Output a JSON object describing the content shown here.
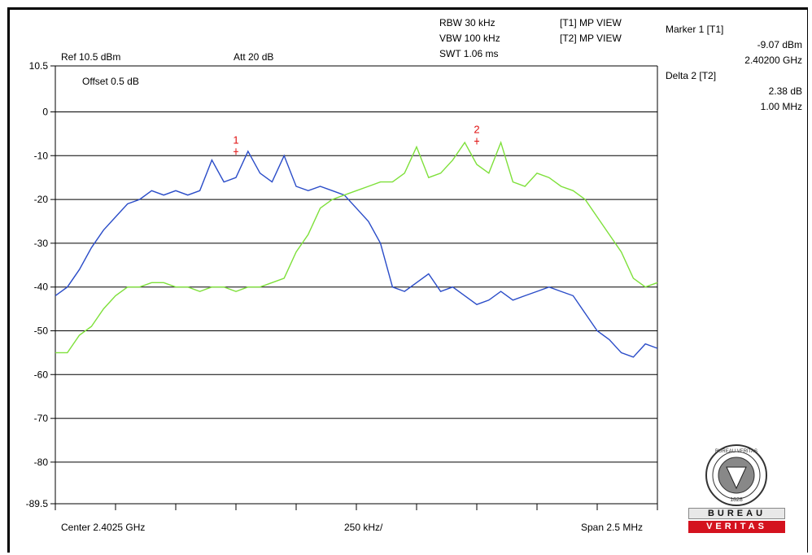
{
  "settings": {
    "ref": "Ref 10.5 dBm",
    "att": "Att  20 dB",
    "offset": "Offset 0.5 dB",
    "rbw": "RBW 30 kHz",
    "vbw": "VBW 100 kHz",
    "swt": "SWT 1.06 ms",
    "trace1": "[T1] MP VIEW",
    "trace2": "[T2] MP VIEW"
  },
  "marker_info": {
    "marker1_label": "Marker 1 [T1]",
    "marker1_level": "-9.07 dBm",
    "marker1_freq": "2.40200 GHz",
    "delta2_label": "Delta 2 [T2]",
    "delta2_level": "2.38 dB",
    "delta2_freq": "1.00 MHz"
  },
  "footer": {
    "center": "Center 2.4025 GHz",
    "div": "250 kHz/",
    "span": "Span 2.5 MHz"
  },
  "logo": {
    "top_text": "BUREAU",
    "bottom_text": "VERITAS",
    "seal_year": "1828",
    "seal_text": "BUREAU VERITAS"
  },
  "colors": {
    "trace1": "#2a4cc8",
    "trace2": "#7ee03a",
    "marker": "#e01010",
    "logo_red": "#d4121e"
  },
  "chart_data": {
    "type": "line",
    "title": "",
    "xlabel": "",
    "ylabel": "",
    "x_range_mhz": [
      -1.25,
      1.25
    ],
    "ylim": [
      -89.5,
      10.5
    ],
    "y_ticks": [
      10.5,
      0,
      -10,
      -20,
      -30,
      -40,
      -50,
      -60,
      -70,
      -80,
      -89.5
    ],
    "y_tick_labels": [
      "10.5",
      "0",
      "-10",
      "-20",
      "-30",
      "-40",
      "-50",
      "-60",
      "-70",
      "-80",
      "-89.5"
    ],
    "grid": true,
    "series": [
      {
        "name": "[T1] MP VIEW",
        "x": [
          -1.25,
          -1.2,
          -1.15,
          -1.1,
          -1.05,
          -1,
          -0.95,
          -0.9,
          -0.85,
          -0.8,
          -0.75,
          -0.7,
          -0.65,
          -0.6,
          -0.55,
          -0.5,
          -0.45,
          -0.4,
          -0.35,
          -0.3,
          -0.25,
          -0.2,
          -0.15,
          -0.1,
          -0.05,
          0,
          0.05,
          0.1,
          0.15,
          0.2,
          0.25,
          0.3,
          0.35,
          0.4,
          0.45,
          0.5,
          0.55,
          0.6,
          0.65,
          0.7,
          0.75,
          0.8,
          0.85,
          0.9,
          0.95,
          1,
          1.05,
          1.1,
          1.15,
          1.2,
          1.25
        ],
        "values": [
          -42,
          -40,
          -36,
          -31,
          -27,
          -24,
          -21,
          -20,
          -18,
          -19,
          -18,
          -19,
          -18,
          -11,
          -16,
          -15,
          -9,
          -14,
          -16,
          -10,
          -17,
          -18,
          -17,
          -18,
          -19,
          -22,
          -25,
          -30,
          -40,
          -41,
          -39,
          -37,
          -41,
          -40,
          -42,
          -44,
          -43,
          -41,
          -43,
          -42,
          -41,
          -40,
          -41,
          -42,
          -46,
          -50,
          -52,
          -55,
          -56,
          -53,
          -54
        ]
      },
      {
        "name": "[T2] MP VIEW",
        "x": [
          -1.25,
          -1.2,
          -1.15,
          -1.1,
          -1.05,
          -1,
          -0.95,
          -0.9,
          -0.85,
          -0.8,
          -0.75,
          -0.7,
          -0.65,
          -0.6,
          -0.55,
          -0.5,
          -0.45,
          -0.4,
          -0.35,
          -0.3,
          -0.25,
          -0.2,
          -0.15,
          -0.1,
          -0.05,
          0,
          0.05,
          0.1,
          0.15,
          0.2,
          0.25,
          0.3,
          0.35,
          0.4,
          0.45,
          0.5,
          0.55,
          0.6,
          0.65,
          0.7,
          0.75,
          0.8,
          0.85,
          0.9,
          0.95,
          1,
          1.05,
          1.1,
          1.15,
          1.2,
          1.25
        ],
        "values": [
          -55,
          -55,
          -51,
          -49,
          -45,
          -42,
          -40,
          -40,
          -39,
          -39,
          -40,
          -40,
          -41,
          -40,
          -40,
          -41,
          -40,
          -40,
          -39,
          -38,
          -32,
          -28,
          -22,
          -20,
          -19,
          -18,
          -17,
          -16,
          -16,
          -14,
          -8,
          -15,
          -14,
          -11,
          -7,
          -12,
          -14,
          -7,
          -16,
          -17,
          -14,
          -15,
          -17,
          -18,
          -20,
          -24,
          -28,
          -32,
          -38,
          -40,
          -39
        ]
      }
    ],
    "markers": [
      {
        "label": "1",
        "x": -0.5,
        "y": -9.07
      },
      {
        "label": "2",
        "x": 0.5,
        "y": -6.69
      }
    ]
  }
}
